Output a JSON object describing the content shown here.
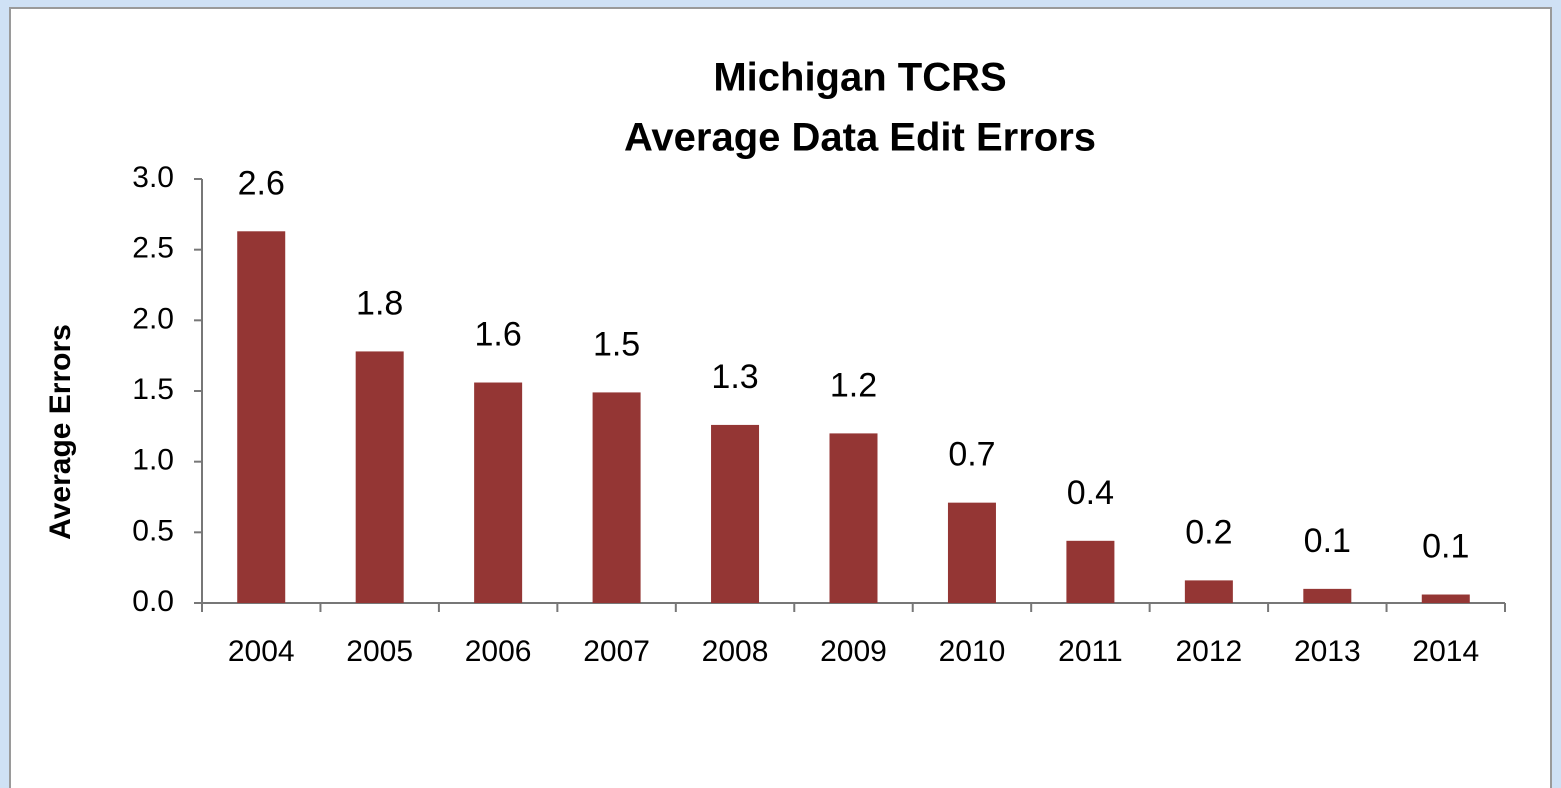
{
  "chart_data": {
    "type": "bar",
    "title": [
      "Michigan TCRS",
      "Average Data Edit Errors"
    ],
    "y_label": "Average Errors",
    "categories": [
      "2004",
      "2005",
      "2006",
      "2007",
      "2008",
      "2009",
      "2010",
      "2011",
      "2012",
      "2013",
      "2014"
    ],
    "values": [
      2.63,
      1.78,
      1.56,
      1.49,
      1.26,
      1.2,
      0.71,
      0.44,
      0.16,
      0.1,
      0.06
    ],
    "value_labels": [
      "2.6",
      "1.8",
      "1.6",
      "1.5",
      "1.3",
      "1.2",
      "0.7",
      "0.4",
      "0.2",
      "0.1",
      "0.1"
    ],
    "color": "#943634",
    "ylim": [
      0,
      3
    ],
    "yticks": [
      {
        "value": 0,
        "label": "0.0"
      },
      0.5,
      {
        "value": 1,
        "label": "1.0"
      },
      1.5,
      {
        "value": 2,
        "label": "2.0"
      },
      2.5,
      {
        "value": 3,
        "label": "3.0"
      }
    ],
    "grid": false
  }
}
